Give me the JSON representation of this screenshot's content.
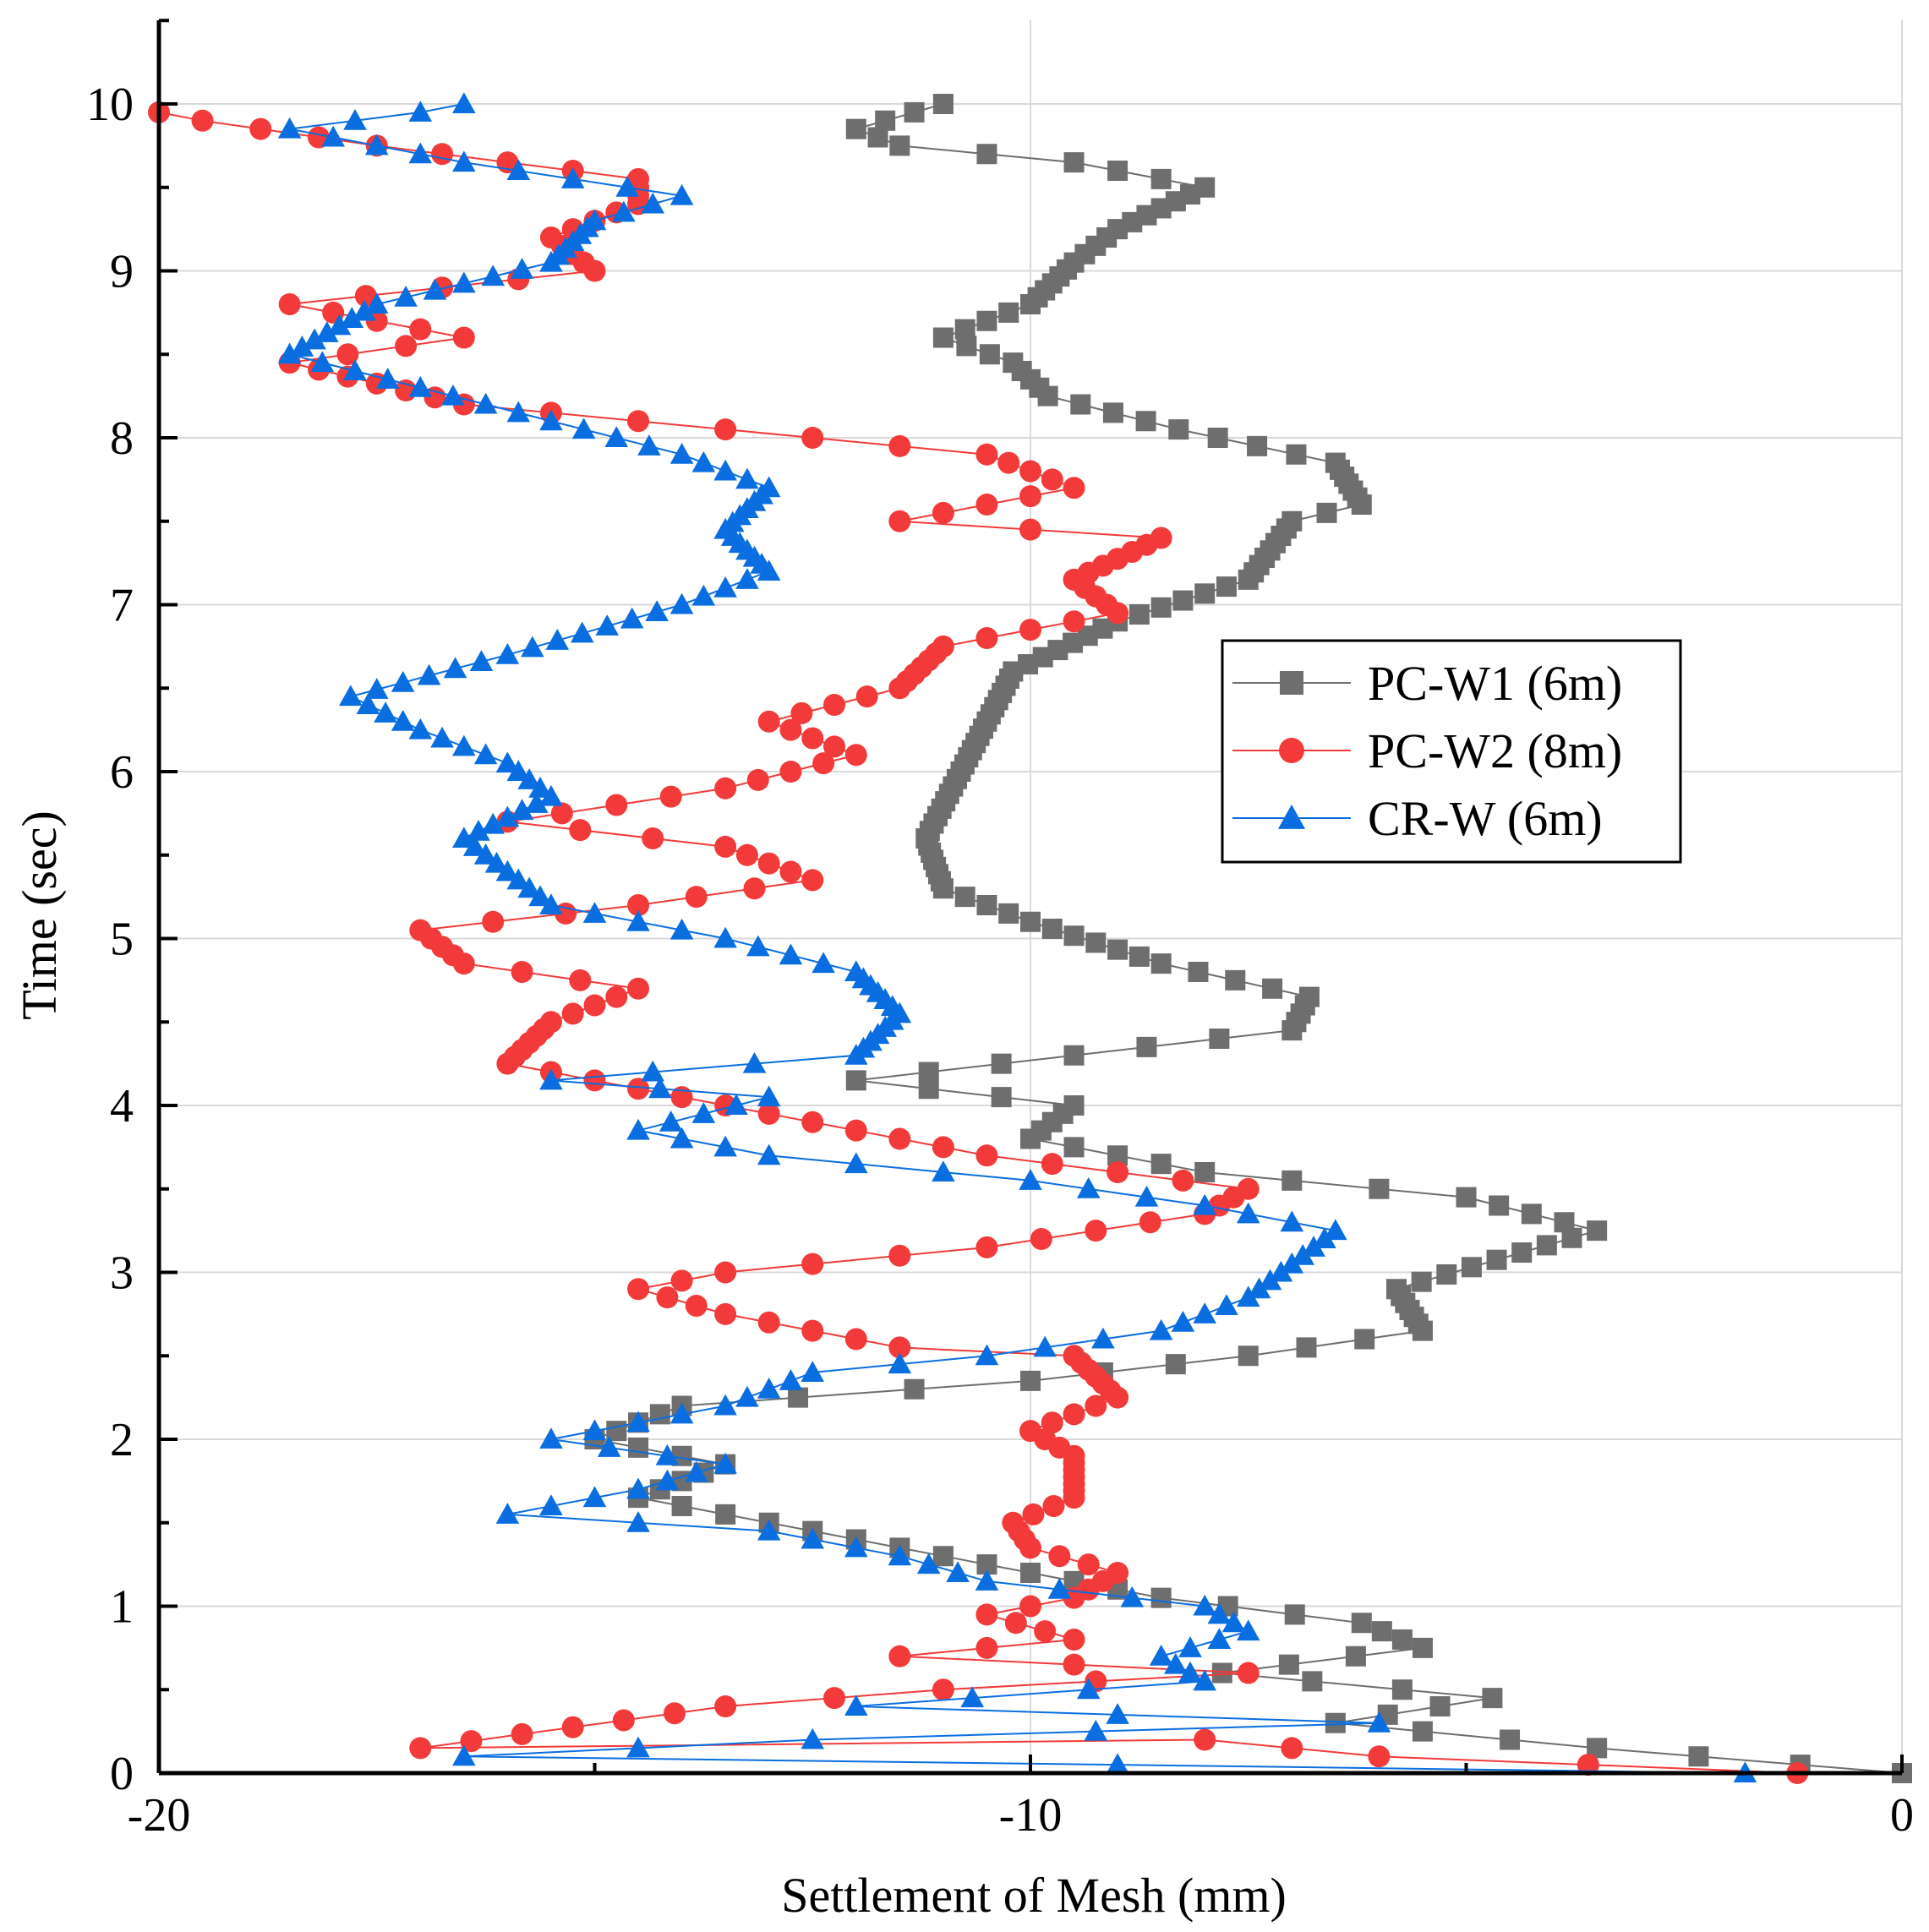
{
  "chart_data": {
    "type": "line",
    "xlabel": "Settlement of Mesh (mm)",
    "ylabel": "Time (sec)",
    "xlim": [
      -20,
      0
    ],
    "ylim": [
      0,
      10.5
    ],
    "x_ticks": [
      "-20",
      "-10",
      "0"
    ],
    "y_ticks": [
      "0",
      "1",
      "2",
      "3",
      "4",
      "5",
      "6",
      "7",
      "8",
      "9",
      "10"
    ],
    "grid": true,
    "legend_position": "right",
    "series": [
      {
        "name": "PC-W1 (6m)",
        "color": "#6e6e6e",
        "marker": "square",
        "points": [
          [
            0,
            0
          ],
          [
            -3.5,
            0.15
          ],
          [
            -6.5,
            0.3
          ],
          [
            -4.7,
            0.45
          ],
          [
            -7.8,
            0.6
          ],
          [
            -5.5,
            0.75
          ],
          [
            -6.2,
            0.9
          ],
          [
            -8.5,
            1.05
          ],
          [
            -10.5,
            1.25
          ],
          [
            -12.5,
            1.45
          ],
          [
            -14.5,
            1.65
          ],
          [
            -13.5,
            1.85
          ],
          [
            -15,
            2.0
          ],
          [
            -14,
            2.2
          ],
          [
            -10,
            2.35
          ],
          [
            -7.5,
            2.5
          ],
          [
            -5.5,
            2.65
          ],
          [
            -5.8,
            2.9
          ],
          [
            -3.5,
            3.25
          ],
          [
            -5.0,
            3.45
          ],
          [
            -8.0,
            3.6
          ],
          [
            -10.0,
            3.8
          ],
          [
            -9.5,
            4.0
          ],
          [
            -12.0,
            4.15
          ],
          [
            -9.5,
            4.3
          ],
          [
            -7.0,
            4.45
          ],
          [
            -6.8,
            4.65
          ],
          [
            -8.5,
            4.85
          ],
          [
            -10.0,
            5.1
          ],
          [
            -11.0,
            5.3
          ],
          [
            -11.2,
            5.6
          ],
          [
            -10.8,
            6.0
          ],
          [
            -10.5,
            6.3
          ],
          [
            -10.2,
            6.6
          ],
          [
            -9.0,
            6.9
          ],
          [
            -7.5,
            7.15
          ],
          [
            -7.0,
            7.5
          ],
          [
            -6.2,
            7.6
          ],
          [
            -6.5,
            7.85
          ],
          [
            -8.3,
            8.05
          ],
          [
            -9.8,
            8.25
          ],
          [
            -10.2,
            8.45
          ],
          [
            -11.0,
            8.6
          ],
          [
            -10.0,
            8.8
          ],
          [
            -9.5,
            9.05
          ],
          [
            -9.0,
            9.25
          ],
          [
            -8.0,
            9.5
          ],
          [
            -9.5,
            9.65
          ],
          [
            -11.5,
            9.75
          ],
          [
            -12.0,
            9.85
          ],
          [
            -11.0,
            10.0
          ]
        ]
      },
      {
        "name": "PC-W2 (8m)",
        "color": "#f23a3a",
        "marker": "circle",
        "points": [
          [
            -1.2,
            0
          ],
          [
            -6,
            0.1
          ],
          [
            -8,
            0.2
          ],
          [
            -17.0,
            0.15
          ],
          [
            -13.5,
            0.4
          ],
          [
            -11,
            0.5
          ],
          [
            -7.5,
            0.6
          ],
          [
            -11.5,
            0.7
          ],
          [
            -9.5,
            0.8
          ],
          [
            -10.5,
            0.95
          ],
          [
            -9.5,
            1.05
          ],
          [
            -9.0,
            1.2
          ],
          [
            -10,
            1.35
          ],
          [
            -10.2,
            1.5
          ],
          [
            -9.5,
            1.65
          ],
          [
            -9.5,
            1.9
          ],
          [
            -10.0,
            2.05
          ],
          [
            -9.0,
            2.25
          ],
          [
            -9.5,
            2.5
          ],
          [
            -11.5,
            2.55
          ],
          [
            -13.5,
            2.75
          ],
          [
            -14.5,
            2.9
          ],
          [
            -13.5,
            3.0
          ],
          [
            -10.5,
            3.15
          ],
          [
            -8.0,
            3.35
          ],
          [
            -7.5,
            3.5
          ],
          [
            -10.5,
            3.7
          ],
          [
            -12.5,
            3.9
          ],
          [
            -14.0,
            4.05
          ],
          [
            -16.0,
            4.25
          ],
          [
            -15.5,
            4.5
          ],
          [
            -14.5,
            4.7
          ],
          [
            -16.5,
            4.85
          ],
          [
            -17.0,
            5.05
          ],
          [
            -14.5,
            5.2
          ],
          [
            -12.5,
            5.35
          ],
          [
            -13.5,
            5.55
          ],
          [
            -16.0,
            5.7
          ],
          [
            -13.5,
            5.9
          ],
          [
            -12.0,
            6.1
          ],
          [
            -13.0,
            6.3
          ],
          [
            -11.5,
            6.5
          ],
          [
            -11.0,
            6.75
          ],
          [
            -9.0,
            6.95
          ],
          [
            -9.5,
            7.15
          ],
          [
            -8.5,
            7.4
          ],
          [
            -11.5,
            7.5
          ],
          [
            -9.5,
            7.7
          ],
          [
            -10.5,
            7.9
          ],
          [
            -13.5,
            8.05
          ],
          [
            -16.5,
            8.2
          ],
          [
            -18.5,
            8.45
          ],
          [
            -16.5,
            8.6
          ],
          [
            -18.5,
            8.8
          ],
          [
            -15.0,
            9.0
          ],
          [
            -15.5,
            9.2
          ],
          [
            -14.5,
            9.4
          ],
          [
            -14.5,
            9.55
          ],
          [
            -17.5,
            9.75
          ],
          [
            -19.5,
            9.9
          ],
          [
            -20.0,
            9.95
          ]
        ]
      },
      {
        "name": "CR-W (6m)",
        "color": "#0a6ee0",
        "marker": "triangle",
        "points": [
          [
            -1.8,
            0
          ],
          [
            -9.0,
            0.05
          ],
          [
            -16.5,
            0.1
          ],
          [
            -12.5,
            0.2
          ],
          [
            -6.0,
            0.3
          ],
          [
            -12.0,
            0.4
          ],
          [
            -8.0,
            0.55
          ],
          [
            -8.5,
            0.7
          ],
          [
            -7.5,
            0.85
          ],
          [
            -8.0,
            1.0
          ],
          [
            -10.5,
            1.15
          ],
          [
            -11.5,
            1.3
          ],
          [
            -13.0,
            1.45
          ],
          [
            -16.0,
            1.55
          ],
          [
            -14.5,
            1.7
          ],
          [
            -13.5,
            1.85
          ],
          [
            -15.5,
            2.0
          ],
          [
            -13.5,
            2.2
          ],
          [
            -12.5,
            2.4
          ],
          [
            -10.5,
            2.5
          ],
          [
            -8.5,
            2.65
          ],
          [
            -7.5,
            2.85
          ],
          [
            -7.0,
            3.05
          ],
          [
            -6.5,
            3.25
          ],
          [
            -8.0,
            3.4
          ],
          [
            -10.0,
            3.55
          ],
          [
            -13.0,
            3.7
          ],
          [
            -14.5,
            3.85
          ],
          [
            -13.0,
            4.05
          ],
          [
            -15.5,
            4.15
          ],
          [
            -12.0,
            4.3
          ],
          [
            -11.5,
            4.55
          ],
          [
            -12.0,
            4.8
          ],
          [
            -13.5,
            5.0
          ],
          [
            -15.5,
            5.2
          ],
          [
            -16.0,
            5.4
          ],
          [
            -16.5,
            5.6
          ],
          [
            -15.5,
            5.85
          ],
          [
            -16.0,
            6.05
          ],
          [
            -17.0,
            6.25
          ],
          [
            -17.8,
            6.45
          ],
          [
            -16.0,
            6.7
          ],
          [
            -14.0,
            7.0
          ],
          [
            -13.0,
            7.2
          ],
          [
            -13.5,
            7.45
          ],
          [
            -13.0,
            7.7
          ],
          [
            -14.0,
            7.9
          ],
          [
            -15.5,
            8.1
          ],
          [
            -17.0,
            8.3
          ],
          [
            -18.5,
            8.5
          ],
          [
            -17.5,
            8.8
          ],
          [
            -15.5,
            9.05
          ],
          [
            -15.0,
            9.3
          ],
          [
            -14.0,
            9.45
          ],
          [
            -16.5,
            9.65
          ],
          [
            -18.5,
            9.85
          ],
          [
            -17.0,
            9.95
          ],
          [
            -16.5,
            10.0
          ]
        ]
      }
    ]
  }
}
